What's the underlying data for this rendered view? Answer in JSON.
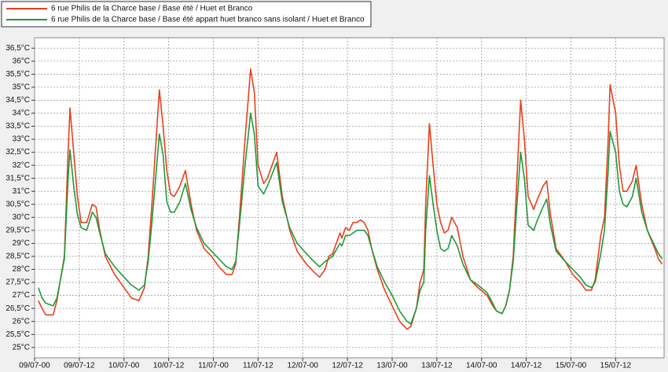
{
  "chart_data": {
    "type": "line",
    "x": [
      1,
      2,
      3,
      5,
      6,
      8,
      9,
      9.5,
      10.5,
      11.5,
      12.5,
      14,
      15.5,
      16.5,
      17.5,
      19,
      21.5,
      24,
      26,
      28,
      29.5,
      30.5,
      31.5,
      33.5,
      34.5,
      35.5,
      36.5,
      37.5,
      39,
      40.5,
      42,
      43.5,
      45.5,
      47.5,
      49.5,
      51.5,
      53,
      54,
      55,
      56.5,
      58,
      59,
      60,
      61.5,
      62.5,
      65,
      66.5,
      68.5,
      70.5,
      73,
      75,
      76.5,
      78,
      79,
      80,
      82,
      82.5,
      83.5,
      84.5,
      85.5,
      86.5,
      87.5,
      88.5,
      89.5,
      90.5,
      92,
      94,
      96,
      98,
      100,
      101,
      102.5,
      103.5,
      104.5,
      105,
      106,
      107,
      108,
      109,
      110,
      111,
      112,
      113.5,
      115,
      117,
      119,
      121.5,
      123,
      124,
      125.5,
      126.5,
      127.5,
      128.5,
      129.5,
      130.5,
      131.5,
      132.5,
      134,
      135,
      136.5,
      137.5,
      138.5,
      140,
      142.5,
      144.5,
      146.5,
      148,
      149.5,
      150.5,
      152,
      153,
      154,
      154.5,
      156,
      157,
      158,
      159,
      160.5,
      161.5,
      163,
      164.5,
      166.5,
      167.5,
      168.5
    ],
    "series": [
      {
        "name": "6 rue Philis de la Charce base / Base été / Huet et Branco",
        "color": "#e8401c",
        "values": [
          26.8,
          26.5,
          26.25,
          26.25,
          26.8,
          28.5,
          32.5,
          34.2,
          32.5,
          30.8,
          29.8,
          29.8,
          30.5,
          30.4,
          29.5,
          28.5,
          27.8,
          27.3,
          26.9,
          26.8,
          27.3,
          28.5,
          30.5,
          34.9,
          33.5,
          31.8,
          30.9,
          30.8,
          31.2,
          31.8,
          30.5,
          29.5,
          28.8,
          28.5,
          28.1,
          27.8,
          27.8,
          28.2,
          30,
          33,
          35.7,
          34.8,
          32,
          31.3,
          31.5,
          32.5,
          30.8,
          29.5,
          28.7,
          28.2,
          27.9,
          27.7,
          28,
          28.5,
          28.6,
          29.4,
          29.2,
          29.6,
          29.5,
          29.8,
          29.8,
          29.9,
          29.8,
          29.5,
          28.8,
          28,
          27.2,
          26.6,
          26,
          25.7,
          25.8,
          26.5,
          27.5,
          28,
          30.5,
          33.6,
          32,
          30.5,
          29.8,
          29.4,
          29.5,
          30,
          29.6,
          28.5,
          27.6,
          27.3,
          27,
          26.6,
          26.4,
          26.3,
          26.6,
          27.2,
          28.5,
          31.5,
          34.5,
          33,
          30.8,
          30.3,
          30.7,
          31.2,
          31.4,
          30.1,
          28.8,
          28.3,
          27.8,
          27.5,
          27.2,
          27.2,
          27.6,
          29.3,
          30,
          33,
          35.1,
          34,
          32,
          31,
          31,
          31.4,
          32,
          30.5,
          29.5,
          28.8,
          28.4,
          28.2
        ]
      },
      {
        "name": "6 rue Philis de la Charce base / Base été appart huet branco sans isolant / Huet et Branco",
        "color": "#1f9a3a",
        "values": [
          27.3,
          26.9,
          26.7,
          26.6,
          26.9,
          28.4,
          31.5,
          32.6,
          31.2,
          30.1,
          29.6,
          29.5,
          30.2,
          30,
          29.4,
          28.6,
          28.1,
          27.7,
          27.4,
          27.2,
          27.4,
          28.3,
          29.8,
          33.2,
          32.4,
          30.6,
          30.2,
          30.2,
          30.6,
          31.3,
          30.3,
          29.6,
          29,
          28.7,
          28.4,
          28.1,
          28,
          28.3,
          29.7,
          32,
          34,
          33.2,
          31.2,
          30.9,
          31.2,
          32.1,
          30.6,
          29.6,
          29,
          28.6,
          28.3,
          28.1,
          28.3,
          28.4,
          28.5,
          29,
          28.9,
          29.3,
          29.3,
          29.4,
          29.5,
          29.5,
          29.5,
          29.3,
          28.8,
          28.1,
          27.5,
          27,
          26.4,
          26,
          25.9,
          26.5,
          27.2,
          27.5,
          29.5,
          31.6,
          30.5,
          29.5,
          28.8,
          28.7,
          28.8,
          29.3,
          28.9,
          28.2,
          27.6,
          27.4,
          27.1,
          26.7,
          26.4,
          26.3,
          26.6,
          27.2,
          28.3,
          30.5,
          32.5,
          31.5,
          29.7,
          29.5,
          29.9,
          30.4,
          30.7,
          29.7,
          28.7,
          28.3,
          28,
          27.7,
          27.4,
          27.3,
          27.5,
          28.6,
          29.5,
          31.8,
          33.3,
          32.5,
          31,
          30.5,
          30.4,
          30.8,
          31.5,
          30.2,
          29.5,
          28.9,
          28.6,
          28.4
        ]
      }
    ],
    "xlim": [
      0,
      169
    ],
    "xticks": [
      {
        "value": 0,
        "label": "09/07-00"
      },
      {
        "value": 12,
        "label": "09/07-12"
      },
      {
        "value": 24,
        "label": "10/07-00"
      },
      {
        "value": 36,
        "label": "10/07-12"
      },
      {
        "value": 48,
        "label": "11/07-00"
      },
      {
        "value": 60,
        "label": "11/07-12"
      },
      {
        "value": 72,
        "label": "12/07-00"
      },
      {
        "value": 84,
        "label": "12/07-12"
      },
      {
        "value": 96,
        "label": "13/07-00"
      },
      {
        "value": 108,
        "label": "13/07-12"
      },
      {
        "value": 120,
        "label": "14/07-00"
      },
      {
        "value": 132,
        "label": "14/07-12"
      },
      {
        "value": 144,
        "label": "15/07-00"
      },
      {
        "value": 156,
        "label": "15/07-12"
      }
    ],
    "ylim": [
      24.6,
      36.9
    ],
    "yticks": [
      {
        "value": 25,
        "label": "25°C"
      },
      {
        "value": 25.5,
        "label": "25,5°C"
      },
      {
        "value": 26,
        "label": "26°C"
      },
      {
        "value": 26.5,
        "label": "26,5°C"
      },
      {
        "value": 27,
        "label": "27°C"
      },
      {
        "value": 27.5,
        "label": "27,5°C"
      },
      {
        "value": 28,
        "label": "28°C"
      },
      {
        "value": 28.5,
        "label": "28,5°C"
      },
      {
        "value": 29,
        "label": "29°C"
      },
      {
        "value": 29.5,
        "label": "29,5°C"
      },
      {
        "value": 30,
        "label": "30°C"
      },
      {
        "value": 30.5,
        "label": "30,5°C"
      },
      {
        "value": 31,
        "label": "31°C"
      },
      {
        "value": 31.5,
        "label": "31,5°C"
      },
      {
        "value": 32,
        "label": "32°C"
      },
      {
        "value": 32.5,
        "label": "32,5°C"
      },
      {
        "value": 33,
        "label": "33°C"
      },
      {
        "value": 33.5,
        "label": "33,5°C"
      },
      {
        "value": 34,
        "label": "34°C"
      },
      {
        "value": 34.5,
        "label": "34,5°C"
      },
      {
        "value": 35,
        "label": "35°C"
      },
      {
        "value": 35.5,
        "label": "35,5°C"
      },
      {
        "value": 36,
        "label": "36°C"
      },
      {
        "value": 36.5,
        "label": "36,5°C"
      }
    ],
    "grid": true
  }
}
